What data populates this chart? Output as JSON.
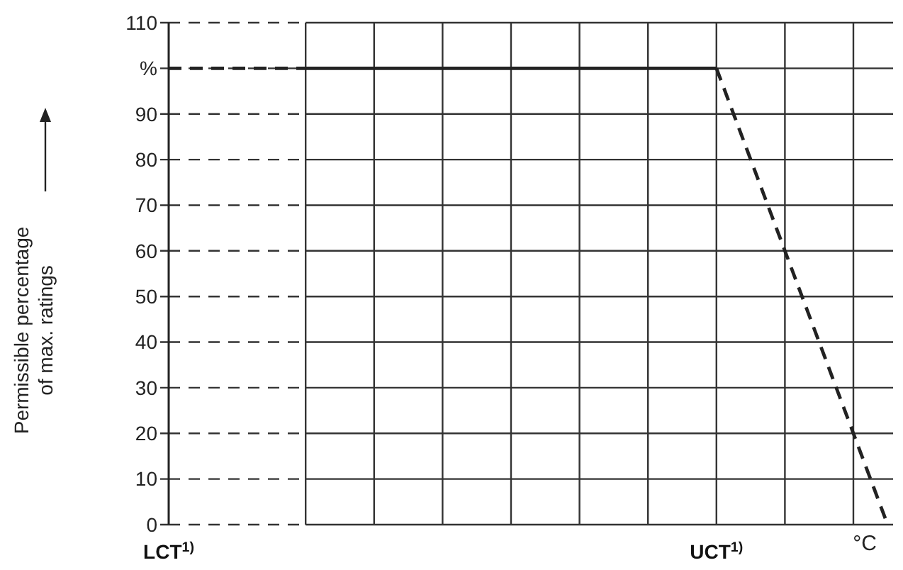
{
  "chart_data": {
    "type": "line",
    "ylabel": "Permissible percentage\nof max. ratings",
    "xlabel": "°C",
    "categories": [
      "LCT$^{1)}$",
      null,
      null,
      null,
      null,
      null,
      null,
      null,
      null,
      null,
      null,
      null,
      null,
      null,
      null,
      null,
      "UCT$^{1)}$",
      null,
      null,
      null,
      null,
      null
    ],
    "ylim": [
      0,
      110
    ],
    "yticks": [
      0,
      10,
      20,
      30,
      40,
      50,
      60,
      70,
      80,
      90,
      {
        "value": 100,
        "label": "%"
      },
      110
    ],
    "grid": true,
    "marker": "none",
    "series": [
      {
        "color": "#222222",
        "line_style": "dashed",
        "values": [
          100,
          100,
          100,
          100,
          100,
          null,
          null,
          null,
          null,
          null,
          null,
          null,
          null,
          null,
          null,
          null,
          null,
          null,
          null,
          null,
          null,
          null
        ]
      },
      {
        "color": "#222222",
        "line_style": "solid",
        "values": [
          null,
          null,
          null,
          null,
          100,
          100,
          100,
          100,
          100,
          100,
          100,
          100,
          100,
          100,
          100,
          100,
          100,
          null,
          null,
          null,
          null,
          null
        ]
      },
      {
        "color": "#222222",
        "line_style": "dashed",
        "values": [
          null,
          null,
          null,
          null,
          null,
          null,
          null,
          null,
          null,
          null,
          null,
          null,
          null,
          null,
          null,
          null,
          100,
          80,
          60,
          40,
          20,
          0
        ]
      }
    ]
  }
}
